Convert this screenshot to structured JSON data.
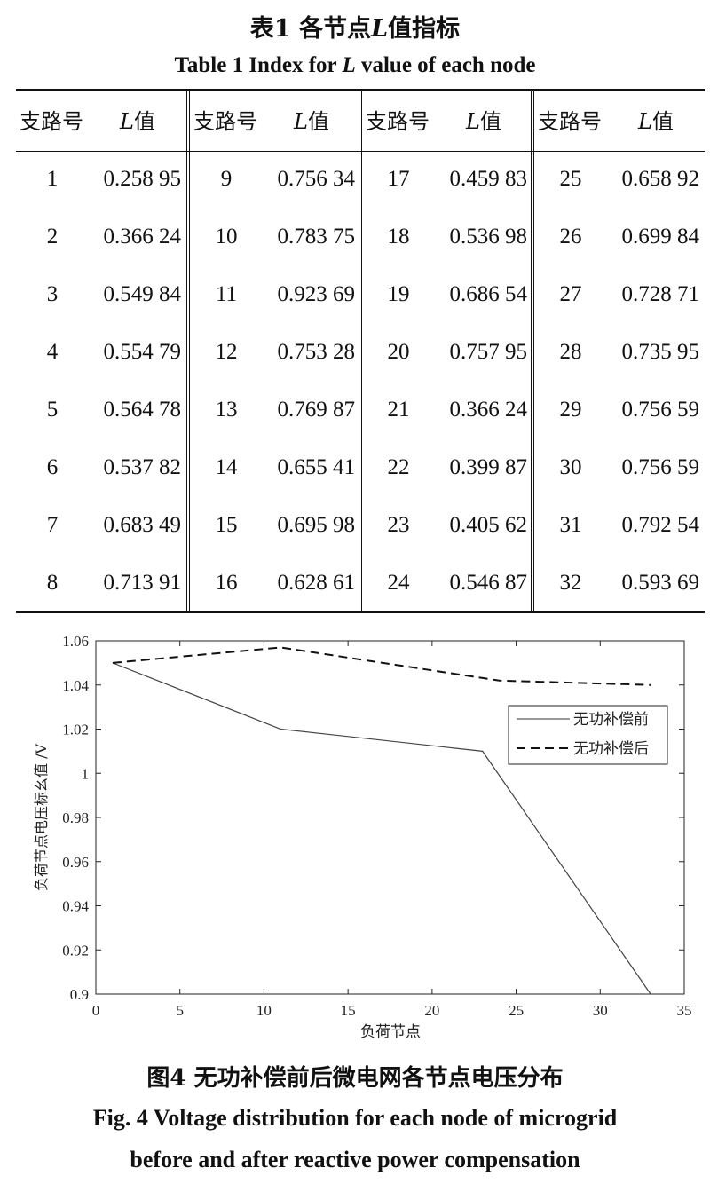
{
  "table": {
    "caption_cn_pre": "表1  各节点",
    "caption_cn_italic": "L",
    "caption_cn_post": "值指标",
    "caption_en_pre": "Table 1  Index for ",
    "caption_en_italic": "L",
    "caption_en_post": " value of each node",
    "header_branch": "支路号",
    "header_value_italic": "L",
    "header_value_suffix": "值",
    "groups": [
      {
        "rows": [
          [
            "1",
            "0.258 95"
          ],
          [
            "2",
            "0.366 24"
          ],
          [
            "3",
            "0.549 84"
          ],
          [
            "4",
            "0.554 79"
          ],
          [
            "5",
            "0.564 78"
          ],
          [
            "6",
            "0.537 82"
          ],
          [
            "7",
            "0.683 49"
          ],
          [
            "8",
            "0.713 91"
          ]
        ]
      },
      {
        "rows": [
          [
            "9",
            "0.756 34"
          ],
          [
            "10",
            "0.783 75"
          ],
          [
            "11",
            "0.923 69"
          ],
          [
            "12",
            "0.753 28"
          ],
          [
            "13",
            "0.769 87"
          ],
          [
            "14",
            "0.655 41"
          ],
          [
            "15",
            "0.695 98"
          ],
          [
            "16",
            "0.628 61"
          ]
        ]
      },
      {
        "rows": [
          [
            "17",
            "0.459 83"
          ],
          [
            "18",
            "0.536 98"
          ],
          [
            "19",
            "0.686 54"
          ],
          [
            "20",
            "0.757 95"
          ],
          [
            "21",
            "0.366 24"
          ],
          [
            "22",
            "0.399 87"
          ],
          [
            "23",
            "0.405 62"
          ],
          [
            "24",
            "0.546 87"
          ]
        ]
      },
      {
        "rows": [
          [
            "25",
            "0.658 92"
          ],
          [
            "26",
            "0.699 84"
          ],
          [
            "27",
            "0.728 71"
          ],
          [
            "28",
            "0.735 95"
          ],
          [
            "29",
            "0.756 59"
          ],
          [
            "30",
            "0.756 59"
          ],
          [
            "31",
            "0.792 54"
          ],
          [
            "32",
            "0.593 69"
          ]
        ]
      }
    ]
  },
  "chart_data": {
    "type": "line",
    "xlabel": "负荷节点",
    "ylabel": "负荷节点电压标幺值 /V",
    "xlim": [
      0,
      35
    ],
    "ylim": [
      0.9,
      1.06
    ],
    "xticks": [
      "0",
      "5",
      "10",
      "15",
      "20",
      "25",
      "30",
      "35"
    ],
    "yticks": [
      "0.9",
      "0.92",
      "0.94",
      "0.96",
      "0.98",
      "1",
      "1.02",
      "1.04",
      "1.06"
    ],
    "grid": false,
    "legend_position": "upper-right",
    "series": [
      {
        "name": "无功补偿前",
        "style": "solid",
        "x": [
          1,
          11,
          23,
          33
        ],
        "y": [
          1.05,
          1.02,
          1.01,
          0.9
        ]
      },
      {
        "name": "无功补偿后",
        "style": "dashed",
        "x": [
          1,
          11,
          24,
          33
        ],
        "y": [
          1.05,
          1.057,
          1.042,
          1.04
        ]
      }
    ]
  },
  "figure": {
    "caption_cn": "图4  无功补偿前后微电网各节点电压分布",
    "caption_en_line1": "Fig. 4  Voltage distribution for each node of microgrid",
    "caption_en_line2": "before and after reactive power compensation"
  }
}
